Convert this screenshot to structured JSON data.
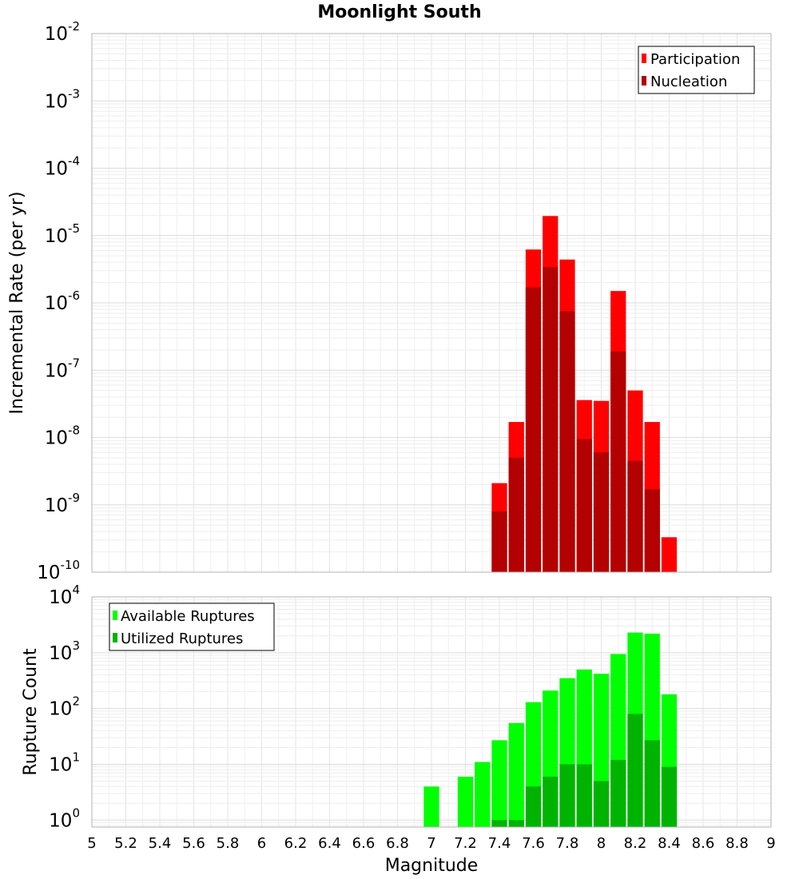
{
  "chart_data": [
    {
      "type": "bar",
      "title": "Moonlight South",
      "xlabel": "Magnitude",
      "ylabel": "Incremental Rate (per yr)",
      "yscale": "log",
      "xlim": [
        5,
        9
      ],
      "ylim": [
        1e-10,
        0.01
      ],
      "ytick_exponents": [
        -2,
        -3,
        -4,
        -5,
        -6,
        -7,
        -8,
        -9,
        -10
      ],
      "ytick_base": "10",
      "grid": true,
      "legend_position": "top-right",
      "bar_width": 0.1,
      "colors": {
        "Participation": "#ff0000",
        "Nucleation": "#b30000"
      },
      "x": [
        7.4,
        7.5,
        7.6,
        7.7,
        7.8,
        7.9,
        8.0,
        8.1,
        8.2,
        8.3,
        8.4
      ],
      "series": [
        {
          "name": "Participation",
          "values": [
            2.1e-09,
            1.7e-08,
            6.2e-06,
            1.95e-05,
            4.4e-06,
            3.6e-08,
            3.5e-08,
            1.5e-06,
            5e-08,
            1.7e-08,
            3.3e-10
          ]
        },
        {
          "name": "Nucleation",
          "values": [
            8e-10,
            5e-09,
            1.7e-06,
            3.4e-06,
            7.5e-07,
            9.5e-09,
            6e-09,
            1.9e-07,
            4.5e-09,
            1.7e-09,
            null
          ]
        }
      ]
    },
    {
      "type": "bar",
      "xlabel": "Magnitude",
      "ylabel": "Rupture Count",
      "yscale": "log",
      "xlim": [
        5,
        9
      ],
      "ylim": [
        0.75,
        10000
      ],
      "ytick_exponents": [
        4,
        3,
        2,
        1,
        0
      ],
      "ytick_base": "10",
      "xticks": [
        "5",
        "5.2",
        "5.4",
        "5.6",
        "5.8",
        "6",
        "6.2",
        "6.4",
        "6.6",
        "6.8",
        "7",
        "7.2",
        "7.4",
        "7.6",
        "7.8",
        "8",
        "8.2",
        "8.4",
        "8.6",
        "8.8",
        "9"
      ],
      "grid": true,
      "legend_position": "top-left",
      "bar_width": 0.1,
      "colors": {
        "Available Ruptures": "#00ff00",
        "Utilized Ruptures": "#00b300"
      },
      "x": [
        7.0,
        7.2,
        7.3,
        7.4,
        7.5,
        7.6,
        7.7,
        7.8,
        7.9,
        8.0,
        8.1,
        8.2,
        8.3,
        8.4
      ],
      "series": [
        {
          "name": "Available Ruptures",
          "values": [
            4,
            6,
            11,
            27,
            55,
            130,
            210,
            350,
            500,
            420,
            950,
            2300,
            2200,
            180
          ]
        },
        {
          "name": "Utilized Ruptures",
          "values": [
            null,
            null,
            null,
            1,
            1,
            4,
            6,
            10,
            10,
            5,
            12,
            80,
            27,
            9
          ]
        }
      ]
    }
  ]
}
